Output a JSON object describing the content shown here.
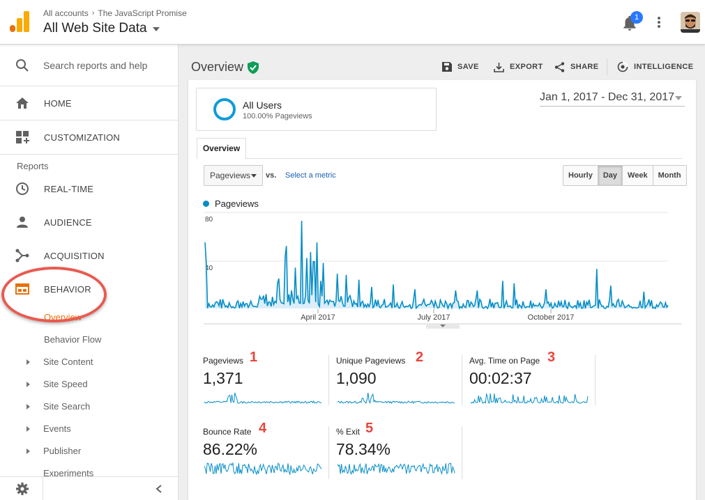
{
  "header": {
    "breadcrumb": [
      "All accounts",
      "The JavaScript Promise"
    ],
    "property": "All Web Site Data",
    "notification_count": "1",
    "icons": [
      "analytics-logo-icon",
      "bell-icon",
      "more-vert-icon",
      "avatar"
    ]
  },
  "sidebar": {
    "search_placeholder": "Search reports and help",
    "top_items": [
      {
        "label": "HOME",
        "icon": "home-icon"
      },
      {
        "label": "CUSTOMIZATION",
        "icon": "dashboard-icon"
      }
    ],
    "reports_label": "Reports",
    "report_items": [
      {
        "label": "REAL-TIME",
        "icon": "clock-icon"
      },
      {
        "label": "AUDIENCE",
        "icon": "person-icon"
      },
      {
        "label": "ACQUISITION",
        "icon": "acquisition-icon"
      },
      {
        "label": "BEHAVIOR",
        "icon": "behavior-icon"
      }
    ],
    "behavior_children": [
      "Overview",
      "Behavior Flow"
    ],
    "expandable_children": [
      "Site Content",
      "Site Speed",
      "Site Search",
      "Events",
      "Publisher",
      "Experiments"
    ],
    "accent_color": "#e8710a"
  },
  "page": {
    "title": "Overview",
    "actions": [
      "SAVE",
      "EXPORT",
      "SHARE",
      "INTELLIGENCE"
    ]
  },
  "segment": {
    "name": "All Users",
    "detail": "100.00% Pageviews"
  },
  "date_range": "Jan 1, 2017 - Dec 31, 2017",
  "tab_label": "Overview",
  "controls": {
    "metric": "Pageviews",
    "vs": "vs.",
    "select_metric": "Select a metric",
    "periods": [
      "Hourly",
      "Day",
      "Week",
      "Month"
    ],
    "active_period": "Day"
  },
  "chart_data": {
    "type": "area",
    "legend": "Pageviews",
    "y_ticks": [
      "80",
      "40"
    ],
    "ylim": [
      0,
      80
    ],
    "x_ticks": [
      "April 2017",
      "July 2017",
      "October 2017"
    ],
    "series_color": "#058dc7"
  },
  "metrics": [
    {
      "label": "Pageviews",
      "value": "1,371",
      "marker": "1"
    },
    {
      "label": "Unique Pageviews",
      "value": "1,090",
      "marker": "2"
    },
    {
      "label": "Avg. Time on Page",
      "value": "00:02:37",
      "marker": "3"
    },
    {
      "label": "Bounce Rate",
      "value": "86.22%",
      "marker": "4"
    },
    {
      "label": "% Exit",
      "value": "78.34%",
      "marker": "5"
    }
  ]
}
